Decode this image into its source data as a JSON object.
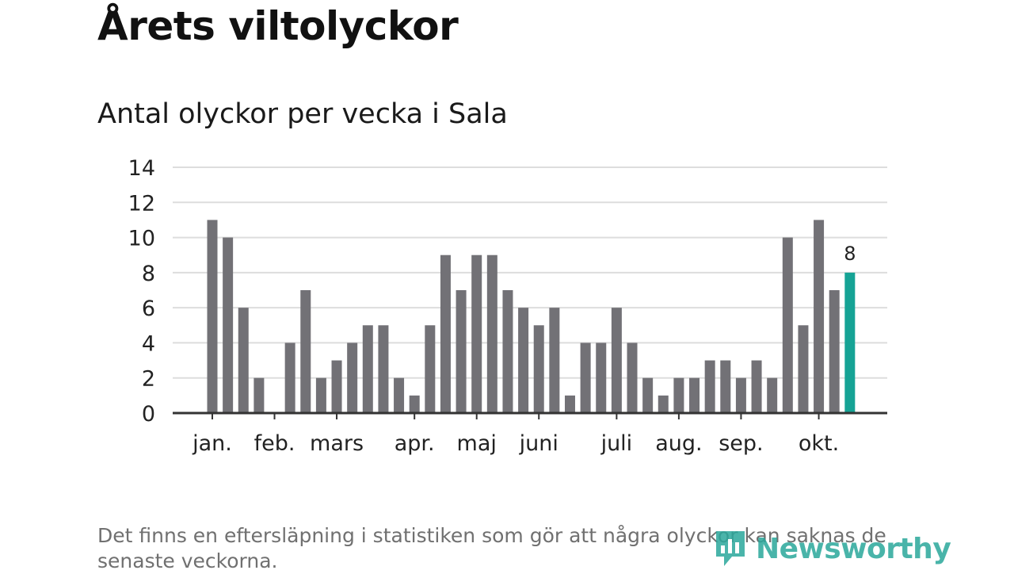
{
  "title": "Årets viltolyckor",
  "subtitle": "Antal olyckor per vecka i Sala",
  "footnote": "Det finns en eftersläpning i statistiken som gör att några olyckor kan saknas de senaste veckorna.",
  "logo_text": "Newsworthy",
  "colors": {
    "bar": "#727176",
    "highlight": "#16a395",
    "grid": "#dddddd",
    "axis": "#333333"
  },
  "chart_data": {
    "type": "bar",
    "title": "Antal olyckor per vecka i Sala",
    "xlabel": "",
    "ylabel": "",
    "ylim": [
      0,
      14
    ],
    "yticks": [
      0,
      2,
      4,
      6,
      8,
      10,
      12,
      14
    ],
    "grid": true,
    "values": [
      11,
      10,
      6,
      2,
      0,
      4,
      7,
      2,
      3,
      4,
      5,
      5,
      2,
      1,
      5,
      9,
      7,
      9,
      9,
      7,
      6,
      5,
      6,
      1,
      4,
      4,
      6,
      4,
      2,
      1,
      2,
      2,
      3,
      3,
      2,
      3,
      2,
      10,
      5,
      11,
      7,
      8
    ],
    "highlight_index": 41,
    "highlight_label": "8",
    "month_labels": [
      {
        "label": "jan.",
        "week_index": 0
      },
      {
        "label": "feb.",
        "week_index": 4
      },
      {
        "label": "mars",
        "week_index": 8
      },
      {
        "label": "apr.",
        "week_index": 13
      },
      {
        "label": "maj",
        "week_index": 17
      },
      {
        "label": "juni",
        "week_index": 21
      },
      {
        "label": "juli",
        "week_index": 26
      },
      {
        "label": "aug.",
        "week_index": 30
      },
      {
        "label": "sep.",
        "week_index": 34
      },
      {
        "label": "okt.",
        "week_index": 39
      }
    ]
  }
}
